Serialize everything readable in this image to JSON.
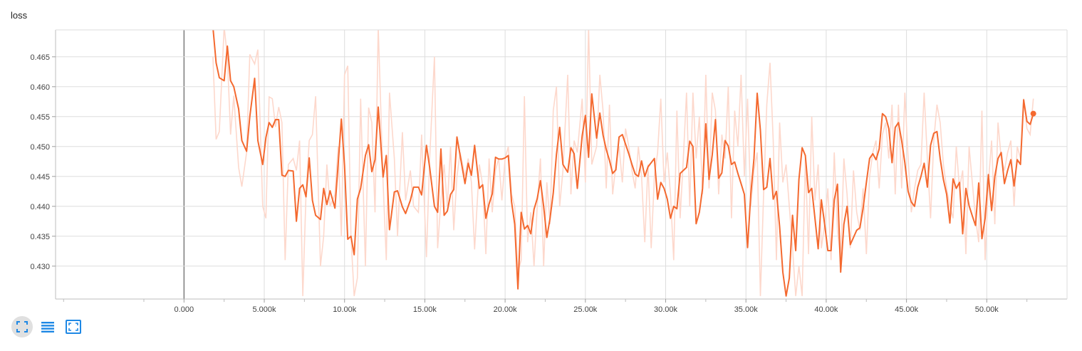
{
  "title": "loss",
  "colors": {
    "smoothed": "#f4692f",
    "raw": "#fdd8cc",
    "grid": "#dddddd",
    "axis": "#616161",
    "icons": "#1e88e5"
  },
  "toolbar": [
    {
      "name": "fit-domain-icon",
      "active": true
    },
    {
      "name": "toggle-log-scale-icon",
      "active": false
    },
    {
      "name": "expand-chart-icon",
      "active": false
    }
  ],
  "chart_data": {
    "type": "line",
    "title": "loss",
    "xlabel": "",
    "ylabel": "",
    "xlim": [
      -8000,
      55000
    ],
    "ylim": [
      0.4245,
      0.4695
    ],
    "x_ticks": [
      0,
      5000,
      10000,
      15000,
      20000,
      25000,
      30000,
      35000,
      40000,
      45000,
      50000
    ],
    "x_tick_labels": [
      "0.000",
      "5.000k",
      "10.00k",
      "15.00k",
      "20.00k",
      "25.00k",
      "30.00k",
      "35.00k",
      "40.00k",
      "45.00k",
      "50.00k"
    ],
    "y_ticks": [
      0.43,
      0.435,
      0.44,
      0.445,
      0.45,
      0.455,
      0.46,
      0.465
    ],
    "y_tick_labels": [
      "0.430",
      "0.435",
      "0.440",
      "0.445",
      "0.450",
      "0.455",
      "0.460",
      "0.465"
    ],
    "grid": true,
    "legend": "none",
    "series": [
      {
        "x": [
          1800,
          2000,
          2200,
          2500,
          2700,
          2900,
          3100,
          3400,
          3600,
          3900,
          4100,
          4400,
          4600,
          4900,
          5100,
          5300,
          5500,
          5700,
          5900,
          6100,
          6300,
          6500,
          6800,
          7000,
          7200,
          7400,
          7600,
          7800,
          8000,
          8200,
          8500,
          8700,
          8900,
          9100,
          9400,
          9600,
          9800,
          10000,
          10200,
          10400,
          10600,
          10800,
          11000,
          11300,
          11500,
          11700,
          11900,
          12100,
          12400,
          12600,
          12800,
          13100,
          13300,
          13600,
          13800,
          14100,
          14300,
          14600,
          14800,
          15100,
          15300,
          15600,
          15800,
          16000,
          16200,
          16400,
          16600,
          16800,
          17000,
          17200,
          17500,
          17700,
          17900,
          18100,
          18400,
          18600,
          18800,
          19000,
          19200,
          19400,
          19600,
          19800,
          20000,
          20200,
          20400,
          20600,
          20800,
          21000,
          21200,
          21400,
          21600,
          21800,
          22000,
          22200,
          22400,
          22600,
          22800,
          23000,
          23200,
          23400,
          23600,
          23900,
          24100,
          24300,
          24500,
          24800,
          25000,
          25200,
          25400,
          25700,
          25900,
          26100,
          26300,
          26500,
          26700,
          26900,
          27100,
          27300,
          27500,
          27700,
          27900,
          28100,
          28300,
          28500,
          28700,
          28900,
          29100,
          29300,
          29500,
          29700,
          29900,
          30100,
          30300,
          30500,
          30700,
          30900,
          31100,
          31300,
          31500,
          31700,
          31900,
          32100,
          32300,
          32500,
          32700,
          32900,
          33100,
          33300,
          33500,
          33700,
          33900,
          34100,
          34300,
          34500,
          34700,
          34900,
          35100,
          35300,
          35500,
          35700,
          35900,
          36100,
          36300,
          36500,
          36700,
          36900,
          37100,
          37300,
          37500,
          37700,
          37900,
          38100,
          38300,
          38500,
          38700,
          38900,
          39100,
          39300,
          39500,
          39700,
          39900,
          40100,
          40300,
          40500,
          40700,
          40900,
          41100,
          41300,
          41500,
          41700,
          41900,
          42100,
          42300,
          42500,
          42700,
          42900,
          43100,
          43300,
          43500,
          43700,
          43900,
          44100,
          44300,
          44500,
          44700,
          44900,
          45100,
          45300,
          45500,
          45700,
          45900,
          46100,
          46300,
          46500,
          46700,
          46900,
          47100,
          47300,
          47500,
          47700,
          47900,
          48100,
          48300,
          48500,
          48700,
          48900,
          49100,
          49300,
          49500,
          49700,
          49900,
          50100,
          50300,
          50500,
          50700,
          50900,
          51100,
          51300,
          51500,
          51700,
          51900,
          52100,
          52300,
          52500,
          52700,
          52900
        ],
        "name": "",
        "smoothed": [
          0.47,
          0.464,
          0.4615,
          0.461,
          0.4668,
          0.461,
          0.46,
          0.4563,
          0.451,
          0.4492,
          0.455,
          0.4614,
          0.451,
          0.447,
          0.4515,
          0.454,
          0.4532,
          0.4545,
          0.4545,
          0.4452,
          0.445,
          0.446,
          0.4459,
          0.4375,
          0.443,
          0.4436,
          0.4416,
          0.4481,
          0.441,
          0.4385,
          0.4378,
          0.443,
          0.4403,
          0.4426,
          0.4397,
          0.447,
          0.4546,
          0.4468,
          0.4345,
          0.435,
          0.4319,
          0.4412,
          0.443,
          0.4485,
          0.4503,
          0.4458,
          0.4478,
          0.4566,
          0.4449,
          0.4485,
          0.4361,
          0.4424,
          0.4426,
          0.4399,
          0.4388,
          0.441,
          0.4432,
          0.4432,
          0.4419,
          0.4502,
          0.4465,
          0.44,
          0.439,
          0.4496,
          0.4385,
          0.4392,
          0.442,
          0.4428,
          0.4516,
          0.4485,
          0.4438,
          0.4472,
          0.4452,
          0.4502,
          0.443,
          0.4436,
          0.438,
          0.4404,
          0.4421,
          0.4482,
          0.4479,
          0.4479,
          0.4481,
          0.4485,
          0.4408,
          0.437,
          0.4262,
          0.439,
          0.4362,
          0.4368,
          0.4354,
          0.4395,
          0.4413,
          0.4443,
          0.44,
          0.4348,
          0.438,
          0.4422,
          0.4487,
          0.4532,
          0.447,
          0.4457,
          0.4498,
          0.4488,
          0.443,
          0.4518,
          0.4552,
          0.4482,
          0.4588,
          0.4514,
          0.4556,
          0.4519,
          0.4495,
          0.4477,
          0.4455,
          0.4461,
          0.4516,
          0.452,
          0.4504,
          0.4488,
          0.447,
          0.4454,
          0.445,
          0.4476,
          0.445,
          0.4466,
          0.4473,
          0.448,
          0.4412,
          0.444,
          0.443,
          0.4412,
          0.438,
          0.44,
          0.4396,
          0.4455,
          0.446,
          0.4465,
          0.4509,
          0.45,
          0.4371,
          0.439,
          0.443,
          0.4538,
          0.4445,
          0.4486,
          0.4545,
          0.4447,
          0.4456,
          0.451,
          0.4501,
          0.447,
          0.4474,
          0.4455,
          0.4438,
          0.442,
          0.4331,
          0.442,
          0.448,
          0.4589,
          0.4527,
          0.4428,
          0.4432,
          0.448,
          0.4412,
          0.4425,
          0.4366,
          0.429,
          0.425,
          0.428,
          0.4385,
          0.4326,
          0.4445,
          0.4498,
          0.4485,
          0.4423,
          0.443,
          0.438,
          0.4329,
          0.4411,
          0.437,
          0.4326,
          0.4326,
          0.4411,
          0.4437,
          0.429,
          0.437,
          0.44,
          0.4336,
          0.4348,
          0.436,
          0.4364,
          0.4397,
          0.444,
          0.448,
          0.4488,
          0.4478,
          0.4496,
          0.4555,
          0.455,
          0.453,
          0.4473,
          0.4532,
          0.454,
          0.451,
          0.4473,
          0.4425,
          0.4407,
          0.44,
          0.4432,
          0.445,
          0.4472,
          0.4432,
          0.4502,
          0.4522,
          0.4525,
          0.448,
          0.4445,
          0.442,
          0.4372,
          0.4446,
          0.443,
          0.444,
          0.4354,
          0.443,
          0.4401,
          0.4384,
          0.4368,
          0.4439,
          0.4346,
          0.438,
          0.4453,
          0.4393,
          0.445,
          0.448,
          0.449,
          0.4438,
          0.446,
          0.4478,
          0.4434,
          0.4478,
          0.447,
          0.4578,
          0.4542,
          0.4537,
          0.4555,
          0.454,
          0.4397,
          0.4443,
          0.4395,
          0.4425,
          0.446,
          0.4375,
          0.4337,
          0.444,
          0.4412,
          0.4466,
          0.444,
          0.4477,
          0.4467,
          0.4399,
          0.4398,
          0.4454,
          0.4425,
          0.4389,
          0.4437,
          0.4418,
          0.445,
          0.445,
          0.4446
        ],
        "raw": [
          0.465,
          0.4512,
          0.4525,
          0.47,
          0.465,
          0.452,
          0.4585,
          0.4465,
          0.4433,
          0.449,
          0.4654,
          0.4638,
          0.4662,
          0.44,
          0.438,
          0.4583,
          0.458,
          0.4533,
          0.4566,
          0.454,
          0.431,
          0.447,
          0.448,
          0.446,
          0.451,
          0.425,
          0.442,
          0.451,
          0.452,
          0.4584,
          0.43,
          0.435,
          0.447,
          0.44,
          0.442,
          0.45,
          0.435,
          0.462,
          0.4635,
          0.435,
          0.425,
          0.428,
          0.458,
          0.43,
          0.4565,
          0.454,
          0.439,
          0.47,
          0.444,
          0.431,
          0.459,
          0.448,
          0.435,
          0.4524,
          0.441,
          0.446,
          0.44,
          0.439,
          0.452,
          0.4315,
          0.448,
          0.465,
          0.433,
          0.441,
          0.447,
          0.44,
          0.45,
          0.436,
          0.445,
          0.449,
          0.445,
          0.448,
          0.444,
          0.4328,
          0.447,
          0.4435,
          0.432,
          0.448,
          0.439,
          0.446,
          0.448,
          0.441,
          0.448,
          0.45,
          0.442,
          0.44,
          0.429,
          0.431,
          0.4584,
          0.434,
          0.439,
          0.43,
          0.44,
          0.448,
          0.43,
          0.444,
          0.437,
          0.456,
          0.46,
          0.44,
          0.446,
          0.462,
          0.442,
          0.451,
          0.449,
          0.458,
          0.444,
          0.47,
          0.447,
          0.45,
          0.462,
          0.456,
          0.443,
          0.457,
          0.442,
          0.447,
          0.45,
          0.444,
          0.453,
          0.45,
          0.446,
          0.443,
          0.45,
          0.445,
          0.434,
          0.447,
          0.433,
          0.445,
          0.449,
          0.458,
          0.444,
          0.449,
          0.442,
          0.431,
          0.456,
          0.438,
          0.448,
          0.459,
          0.44,
          0.459,
          0.448,
          0.455,
          0.442,
          0.462,
          0.443,
          0.459,
          0.456,
          0.442,
          0.452,
          0.448,
          0.46,
          0.438,
          0.456,
          0.45,
          0.462,
          0.445,
          0.458,
          0.44,
          0.446,
          0.449,
          0.425,
          0.442,
          0.457,
          0.464,
          0.451,
          0.431,
          0.454,
          0.444,
          0.447,
          0.44,
          0.433,
          0.425,
          0.43,
          0.425,
          0.448,
          0.432,
          0.455,
          0.441,
          0.447,
          0.433,
          0.437,
          0.443,
          0.431,
          0.449,
          0.436,
          0.431,
          0.448,
          0.442,
          0.433,
          0.446,
          0.439,
          0.436,
          0.443,
          0.432,
          0.445,
          0.449,
          0.451,
          0.443,
          0.452,
          0.454,
          0.448,
          0.457,
          0.442,
          0.457,
          0.443,
          0.459,
          0.448,
          0.439,
          0.443,
          0.446,
          0.447,
          0.459,
          0.448,
          0.438,
          0.451,
          0.457,
          0.454,
          0.447,
          0.443,
          0.44,
          0.438,
          0.45,
          0.443,
          0.446,
          0.432,
          0.45,
          0.444,
          0.438,
          0.434,
          0.456,
          0.431,
          0.444,
          0.451,
          0.437,
          0.454,
          0.448,
          0.446,
          0.449,
          0.451,
          0.44,
          0.45,
          0.448,
          0.458,
          0.453,
          0.452,
          0.458,
          0.453,
          0.429,
          0.452,
          0.438,
          0.451,
          0.443,
          0.44,
          0.429,
          0.443,
          0.448,
          0.44,
          0.442,
          0.45,
          0.446,
          0.43,
          0.448,
          0.449,
          0.438,
          0.444,
          0.436,
          0.45,
          0.447,
          0.444,
          0.445
        ]
      }
    ]
  }
}
